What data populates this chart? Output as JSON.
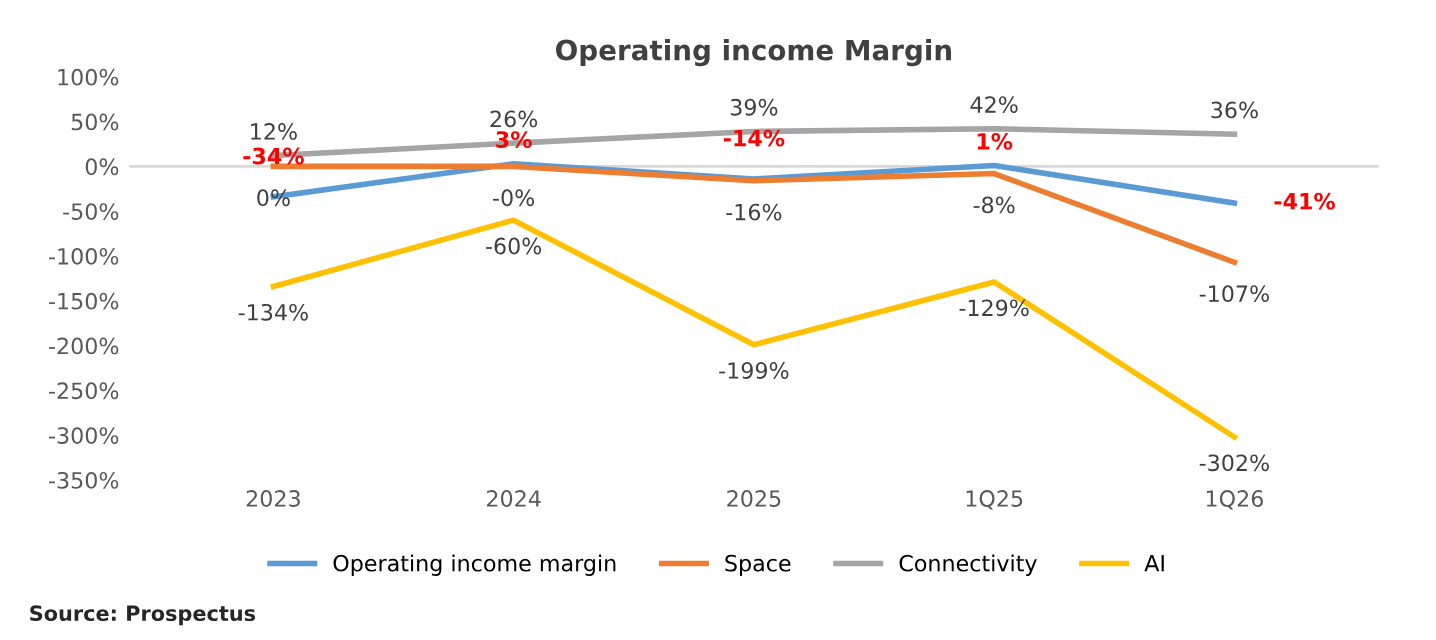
{
  "chart_data": {
    "type": "line",
    "title": "Operating income Margin",
    "categories": [
      "2023",
      "2024",
      "2025",
      "1Q25",
      "1Q26"
    ],
    "series": [
      {
        "name": "Operating income margin",
        "color": "#5b9bd5",
        "values": [
          -34,
          3,
          -14,
          1,
          -41
        ],
        "value_labels": [
          "-34%",
          "3%",
          "-14%",
          "1%",
          "-41%"
        ]
      },
      {
        "name": "Space",
        "color": "#ed7d31",
        "values": [
          0,
          0,
          -16,
          -8,
          -107
        ],
        "value_labels": [
          "0%",
          "-0%",
          "-16%",
          "-8%",
          "-107%"
        ]
      },
      {
        "name": "Connectivity",
        "color": "#a5a5a5",
        "values": [
          12,
          26,
          39,
          42,
          36
        ],
        "value_labels": [
          "12%",
          "26%",
          "39%",
          "42%",
          "36%"
        ]
      },
      {
        "name": "AI",
        "color": "#ffc000",
        "values": [
          -134,
          -60,
          -199,
          -129,
          -302
        ],
        "value_labels": [
          "-134%",
          "-60%",
          "-199%",
          "-129%",
          "-302%"
        ]
      }
    ],
    "ylim": [
      -350,
      100
    ],
    "yticks": [
      {
        "value": 100,
        "label": "100%"
      },
      {
        "value": 50,
        "label": "50%"
      },
      {
        "value": 0,
        "label": "0%"
      },
      {
        "value": -50,
        "label": "-50%"
      },
      {
        "value": -100,
        "label": "-100%"
      },
      {
        "value": -150,
        "label": "-150%"
      },
      {
        "value": -200,
        "label": "-200%"
      },
      {
        "value": -250,
        "label": "-250%"
      },
      {
        "value": -300,
        "label": "-300%"
      },
      {
        "value": -350,
        "label": "-350%"
      }
    ],
    "ref_lines": [
      {
        "axis": "y",
        "value": 0,
        "color": "#d9d9d9",
        "line_style": "solid"
      }
    ],
    "grid": false,
    "legend": "bottom",
    "marker": "none",
    "line_style": "solid",
    "annotations": [
      "Source: Prospectus"
    ]
  }
}
